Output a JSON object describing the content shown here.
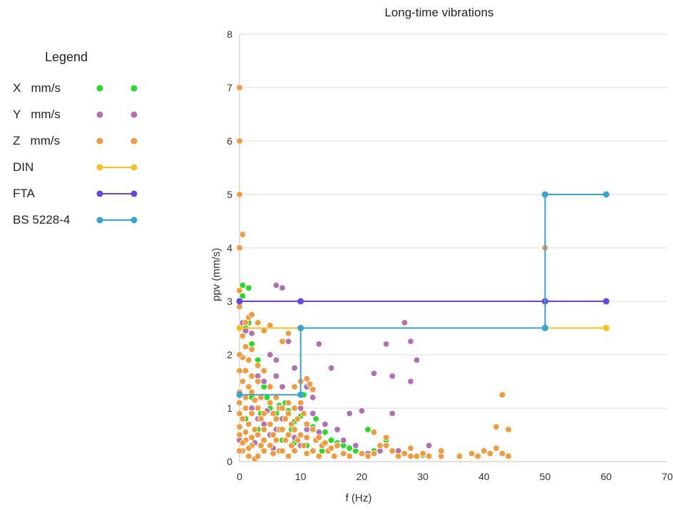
{
  "legend": {
    "title": "Legend",
    "entries": [
      {
        "label": "X   mm/s",
        "kind": "dots",
        "color": "#22dd22"
      },
      {
        "label": "Y   mm/s",
        "kind": "dots",
        "color": "#b46fb4"
      },
      {
        "label": "Z   mm/s",
        "kind": "dots",
        "color": "#f39a3b"
      },
      {
        "label": "DIN",
        "kind": "line",
        "color": "#f7c21b"
      },
      {
        "label": "FTA",
        "kind": "line",
        "color": "#6a43e6"
      },
      {
        "label": "BS 5228-4",
        "kind": "line",
        "color": "#33a6d1"
      }
    ]
  },
  "chart_data": {
    "type": "scatter",
    "title": "Long-time vibrations",
    "xlabel": "f (Hz)",
    "ylabel": "ppv (mm/s)",
    "xlim": [
      0,
      70
    ],
    "ylim": [
      0,
      8
    ],
    "x_ticks": [
      0,
      10,
      20,
      30,
      40,
      50,
      60,
      70
    ],
    "y_ticks": [
      0,
      1,
      2,
      3,
      4,
      5,
      6,
      7,
      8
    ],
    "grid": "horizontal",
    "series": [
      {
        "name": "X   mm/s",
        "kind": "scatter",
        "color": "#22dd22",
        "points": [
          [
            0.5,
            3.3
          ],
          [
            1.5,
            3.25
          ],
          [
            0.5,
            3.1
          ],
          [
            1.5,
            2.6
          ],
          [
            2,
            2.2
          ],
          [
            1,
            2.5
          ],
          [
            3,
            1.9
          ],
          [
            4,
            1.4
          ],
          [
            4.5,
            1.2
          ],
          [
            5,
            1.0
          ],
          [
            6,
            0.9
          ],
          [
            6.5,
            1.05
          ],
          [
            7.5,
            1.1
          ],
          [
            8,
            0.95
          ],
          [
            9,
            0.75
          ],
          [
            10,
            0.85
          ],
          [
            10.5,
            1.25
          ],
          [
            11,
            0.7
          ],
          [
            12,
            0.65
          ],
          [
            12.5,
            0.8
          ],
          [
            13,
            0.5
          ],
          [
            14,
            0.55
          ],
          [
            15,
            0.4
          ],
          [
            16,
            0.35
          ],
          [
            17,
            0.3
          ],
          [
            18,
            0.25
          ],
          [
            19,
            0.2
          ],
          [
            21,
            0.6
          ],
          [
            22,
            0.2
          ],
          [
            24,
            0.4
          ],
          [
            25,
            0.2
          ],
          [
            27,
            0.15
          ],
          [
            30,
            0.12
          ],
          [
            3,
            0.6
          ],
          [
            5,
            0.5
          ],
          [
            7,
            0.4
          ],
          [
            9,
            0.35
          ],
          [
            11,
            0.3
          ],
          [
            2,
            1.2
          ],
          [
            3.5,
            0.9
          ],
          [
            8.5,
            0.6
          ],
          [
            13.5,
            0.2
          ],
          [
            20,
            0.15
          ],
          [
            26,
            0.15
          ],
          [
            1,
            0.8
          ]
        ]
      },
      {
        "name": "Y   mm/s",
        "kind": "scatter",
        "color": "#b46fb4",
        "points": [
          [
            6,
            3.3
          ],
          [
            7,
            3.25
          ],
          [
            0.5,
            2.6
          ],
          [
            1,
            2.45
          ],
          [
            2,
            2.4
          ],
          [
            5,
            2.0
          ],
          [
            6,
            1.9
          ],
          [
            8,
            2.25
          ],
          [
            9,
            1.75
          ],
          [
            3,
            1.6
          ],
          [
            4,
            1.5
          ],
          [
            6,
            1.6
          ],
          [
            7,
            1.4
          ],
          [
            11,
            1.4
          ],
          [
            12,
            1.2
          ],
          [
            13,
            2.2
          ],
          [
            15,
            1.75
          ],
          [
            22,
            1.65
          ],
          [
            24,
            2.2
          ],
          [
            25,
            1.6
          ],
          [
            27,
            2.6
          ],
          [
            28,
            2.25
          ],
          [
            28,
            1.5
          ],
          [
            29,
            1.9
          ],
          [
            25,
            0.9
          ],
          [
            20,
            0.95
          ],
          [
            18,
            0.9
          ],
          [
            10,
            1.0
          ],
          [
            12,
            0.9
          ],
          [
            14,
            0.7
          ],
          [
            16,
            0.6
          ],
          [
            17,
            0.4
          ],
          [
            19,
            0.3
          ],
          [
            21,
            0.15
          ],
          [
            23,
            0.2
          ],
          [
            26,
            0.2
          ],
          [
            31,
            0.3
          ],
          [
            2,
            1.0
          ],
          [
            3,
            0.8
          ],
          [
            4,
            0.7
          ],
          [
            5,
            0.5
          ],
          [
            6,
            0.6
          ],
          [
            7,
            0.8
          ],
          [
            8,
            0.5
          ],
          [
            9,
            0.45
          ],
          [
            10,
            0.3
          ],
          [
            11,
            0.6
          ],
          [
            13,
            0.55
          ],
          [
            15,
            0.25
          ],
          [
            1.5,
            1.9
          ],
          [
            0.5,
            1.5
          ],
          [
            4.5,
            0.95
          ],
          [
            2.5,
            0.35
          ],
          [
            5.5,
            0.25
          ],
          [
            0,
            0.4
          ],
          [
            0,
            0.2
          ]
        ]
      },
      {
        "name": "Z   mm/s",
        "kind": "scatter",
        "color": "#f39a3b",
        "points": [
          [
            0,
            7.0
          ],
          [
            0,
            6.0
          ],
          [
            0,
            5.0
          ],
          [
            0.5,
            4.25
          ],
          [
            0,
            4.0
          ],
          [
            50,
            4.0
          ],
          [
            1.5,
            2.7
          ],
          [
            2,
            2.75
          ],
          [
            1,
            2.6
          ],
          [
            0.5,
            2.35
          ],
          [
            1,
            2.15
          ],
          [
            2,
            2.1
          ],
          [
            0.5,
            1.95
          ],
          [
            1.5,
            1.9
          ],
          [
            0,
            1.7
          ],
          [
            1,
            1.7
          ],
          [
            0.5,
            1.5
          ],
          [
            1.5,
            1.4
          ],
          [
            2,
            1.3
          ],
          [
            2.5,
            1.15
          ],
          [
            0,
            1.1
          ],
          [
            1,
            1.0
          ],
          [
            2,
            0.9
          ],
          [
            0.5,
            0.8
          ],
          [
            1.5,
            0.7
          ],
          [
            2.5,
            0.6
          ],
          [
            0,
            0.5
          ],
          [
            1,
            0.4
          ],
          [
            2,
            0.3
          ],
          [
            0.5,
            0.2
          ],
          [
            1.5,
            0.1
          ],
          [
            2.5,
            0.05
          ],
          [
            3,
            1.5
          ],
          [
            3.5,
            1.2
          ],
          [
            3,
            1.0
          ],
          [
            4,
            0.9
          ],
          [
            3.5,
            0.8
          ],
          [
            4,
            0.6
          ],
          [
            3,
            0.5
          ],
          [
            4,
            0.4
          ],
          [
            3.5,
            0.3
          ],
          [
            4,
            0.2
          ],
          [
            3,
            0.1
          ],
          [
            5,
            1.4
          ],
          [
            5,
            1.1
          ],
          [
            5.5,
            0.9
          ],
          [
            5,
            0.7
          ],
          [
            5.5,
            0.5
          ],
          [
            5,
            0.3
          ],
          [
            5.5,
            0.15
          ],
          [
            6,
            1.2
          ],
          [
            6.5,
            1.0
          ],
          [
            6,
            0.8
          ],
          [
            6.5,
            0.6
          ],
          [
            6,
            0.4
          ],
          [
            6.5,
            0.2
          ],
          [
            7,
            2.25
          ],
          [
            8,
            2.4
          ],
          [
            7,
            1.0
          ],
          [
            7.5,
            0.8
          ],
          [
            7,
            0.6
          ],
          [
            7.5,
            0.4
          ],
          [
            7,
            0.2
          ],
          [
            8,
            1.1
          ],
          [
            8,
            0.9
          ],
          [
            8.5,
            0.7
          ],
          [
            8,
            0.5
          ],
          [
            8.5,
            0.3
          ],
          [
            8,
            0.1
          ],
          [
            9,
            1.4
          ],
          [
            9,
            1.0
          ],
          [
            9.5,
            0.8
          ],
          [
            9,
            0.6
          ],
          [
            9.5,
            0.4
          ],
          [
            9,
            0.2
          ],
          [
            10,
            1.5
          ],
          [
            11,
            1.55
          ],
          [
            11.5,
            1.45
          ],
          [
            12,
            1.35
          ],
          [
            10,
            1.1
          ],
          [
            10.5,
            0.9
          ],
          [
            11,
            0.7
          ],
          [
            10,
            0.5
          ],
          [
            11,
            0.45
          ],
          [
            10.5,
            0.3
          ],
          [
            11,
            0.15
          ],
          [
            12,
            0.6
          ],
          [
            12.5,
            0.4
          ],
          [
            12,
            0.2
          ],
          [
            13,
            0.45
          ],
          [
            13.5,
            0.3
          ],
          [
            13,
            0.1
          ],
          [
            14,
            0.35
          ],
          [
            14.5,
            0.2
          ],
          [
            15,
            0.25
          ],
          [
            15.5,
            0.1
          ],
          [
            16,
            0.3
          ],
          [
            17,
            0.15
          ],
          [
            18,
            0.1
          ],
          [
            20,
            0.15
          ],
          [
            21,
            0.1
          ],
          [
            22,
            0.55
          ],
          [
            22,
            0.15
          ],
          [
            23,
            0.3
          ],
          [
            24,
            0.3
          ],
          [
            24,
            0.45
          ],
          [
            25,
            0.2
          ],
          [
            26,
            0.1
          ],
          [
            27,
            0.15
          ],
          [
            28,
            0.1
          ],
          [
            28,
            0.25
          ],
          [
            29,
            0.1
          ],
          [
            30,
            0.15
          ],
          [
            31,
            0.1
          ],
          [
            33,
            0.1
          ],
          [
            33,
            0.2
          ],
          [
            36,
            0.1
          ],
          [
            38,
            0.15
          ],
          [
            39,
            0.1
          ],
          [
            40,
            0.2
          ],
          [
            41,
            0.15
          ],
          [
            42,
            0.25
          ],
          [
            42,
            0.65
          ],
          [
            43,
            1.25
          ],
          [
            43,
            0.15
          ],
          [
            44,
            0.6
          ],
          [
            44,
            0.1
          ],
          [
            5,
            2.55
          ],
          [
            4,
            2.45
          ],
          [
            3,
            2.6
          ],
          [
            0,
            3.2
          ],
          [
            0,
            2.9
          ],
          [
            0,
            2.0
          ],
          [
            0,
            0.2
          ],
          [
            0,
            0.9
          ],
          [
            0,
            1.3
          ],
          [
            0,
            0.65
          ],
          [
            1,
            1.2
          ],
          [
            2,
            1.6
          ],
          [
            3,
            1.8
          ],
          [
            4,
            1.7
          ],
          [
            1,
            0.55
          ],
          [
            2,
            0.45
          ],
          [
            0.5,
            0.35
          ],
          [
            1.5,
            0.25
          ]
        ]
      },
      {
        "name": "DIN",
        "kind": "line",
        "color": "#f7c21b",
        "points": [
          [
            0,
            2.5
          ],
          [
            10,
            2.5
          ],
          [
            50,
            2.5
          ],
          [
            60,
            2.5
          ]
        ]
      },
      {
        "name": "FTA",
        "kind": "line",
        "color": "#6a43e6",
        "points": [
          [
            0,
            3
          ],
          [
            10,
            3
          ],
          [
            50,
            3
          ],
          [
            60,
            3
          ]
        ]
      },
      {
        "name": "BS 5228-4",
        "kind": "line",
        "color": "#33a6d1",
        "points": [
          [
            0,
            1.25
          ],
          [
            10,
            1.25
          ],
          [
            10,
            2.5
          ],
          [
            50,
            2.5
          ],
          [
            50,
            5
          ],
          [
            60,
            5
          ]
        ]
      }
    ]
  }
}
